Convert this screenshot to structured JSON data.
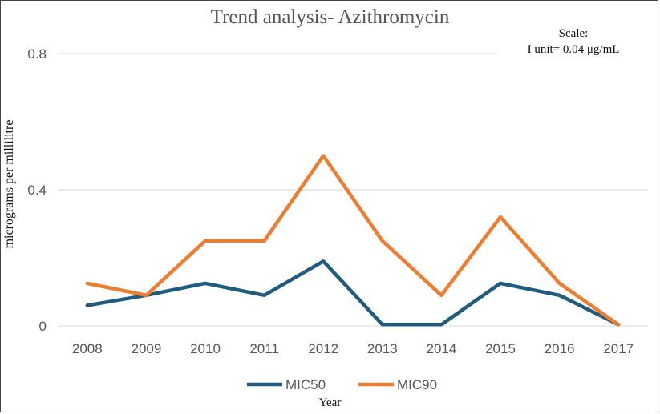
{
  "chart_data": {
    "type": "line",
    "title": "Trend analysis- Azithromycin",
    "annotation": {
      "line1": "Scale:",
      "line2": "I unit= 0.04 μg/mL"
    },
    "xlabel": "Year",
    "ylabel": "micrograms per millilitre",
    "categories": [
      "2008",
      "2009",
      "2010",
      "2011",
      "2012",
      "2013",
      "2014",
      "2015",
      "2016",
      "2017"
    ],
    "ylim": [
      0,
      0.8
    ],
    "yticks": [
      0,
      0.4,
      0.8
    ],
    "ytick_labels": [
      "0",
      "0.4",
      "0.8"
    ],
    "grid": true,
    "legend": "bottom",
    "series": [
      {
        "name": "MIC50",
        "color": "#1f5c80",
        "values": [
          0.06,
          0.09,
          0.125,
          0.09,
          0.19,
          0.004,
          0.004,
          0.125,
          0.09,
          0.004
        ]
      },
      {
        "name": "MIC90",
        "color": "#ed7d31",
        "values": [
          0.125,
          0.09,
          0.25,
          0.25,
          0.5,
          0.25,
          0.09,
          0.32,
          0.125,
          0.004
        ]
      }
    ]
  }
}
